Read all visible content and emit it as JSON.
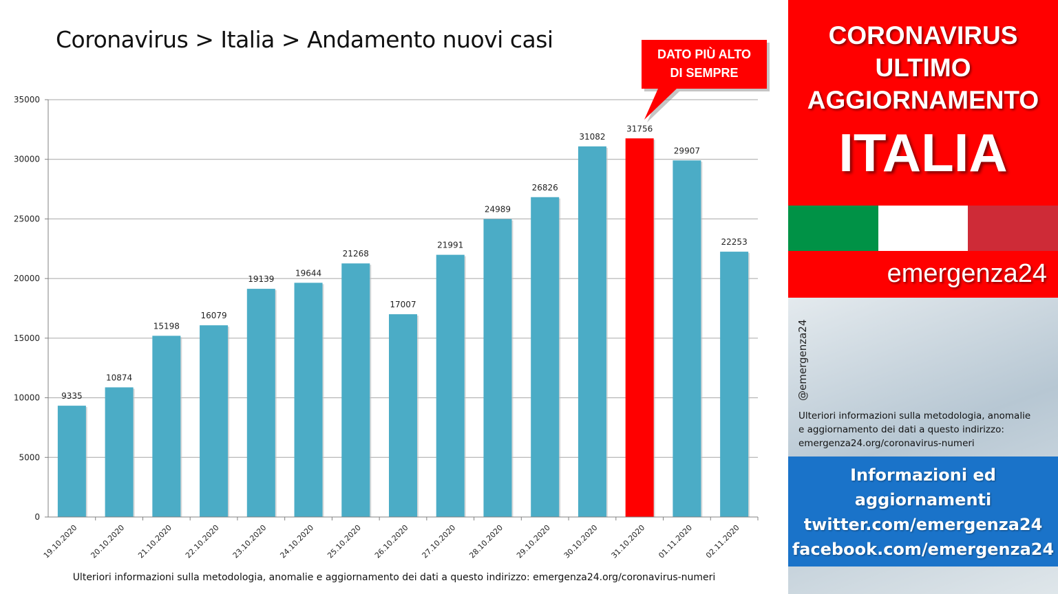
{
  "chart_data": {
    "type": "bar",
    "title": "Coronavirus > Italia > Andamento nuovi casi",
    "categories": [
      "19.10.2020",
      "20.10.2020",
      "21.10.2020",
      "22.10.2020",
      "23.10.2020",
      "24.10.2020",
      "25.10.2020",
      "26.10.2020",
      "27.10.2020",
      "28.10.2020",
      "29.10.2020",
      "30.10.2020",
      "31.10.2020",
      "01.11.2020",
      "02.11.2020"
    ],
    "values": [
      9335,
      10874,
      15198,
      16079,
      19139,
      19644,
      21268,
      17007,
      21991,
      24989,
      26826,
      31082,
      31756,
      29907,
      22253
    ],
    "highlight_category": "31.10.2020",
    "ylim": [
      0,
      35000
    ],
    "yticks": [
      0,
      5000,
      10000,
      15000,
      20000,
      25000,
      30000,
      35000
    ],
    "grid": true,
    "legend": "none",
    "colors": {
      "bar": "#4bacc6",
      "highlight": "#ff0000",
      "grid": "#a6a6a6"
    },
    "annotation": {
      "line1": "DATO PIÙ ALTO",
      "line2": "DI SEMPRE"
    }
  },
  "footer_note": "Ulteriori informazioni sulla metodologia, anomalie e aggiornamento dei dati a questo indirizzo: emergenza24.org/coronavirus-numeri",
  "sidebar": {
    "hero": {
      "line1": "CORONAVIRUS",
      "line2": "ULTIMO",
      "line3": "AGGIORNAMENTO",
      "line4": "ITALIA"
    },
    "flag_colors": [
      "#009246",
      "#ffffff",
      "#ce2b37"
    ],
    "brand": "emergenza24",
    "handle": "@emergenza24",
    "info": {
      "line1": "Ulteriori informazioni sulla metodologia, anomalie",
      "line2": "e aggiornamento dei dati a questo indirizzo:",
      "line3": "emergenza24.org/coronavirus-numeri"
    },
    "social": {
      "line1": "Informazioni ed",
      "line2": "aggiornamenti",
      "line3": "twitter.com/emergenza24",
      "line4": "facebook.com/emergenza24"
    }
  }
}
